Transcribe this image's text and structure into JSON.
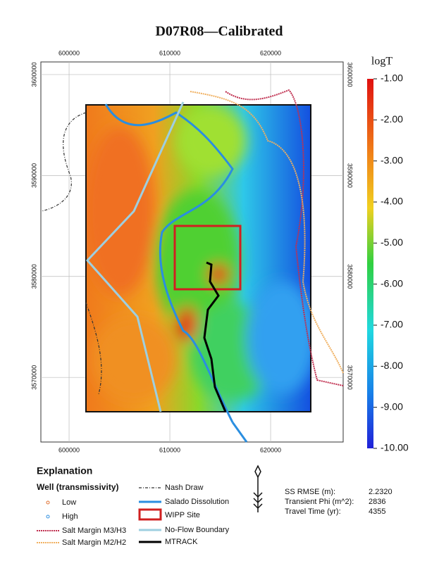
{
  "title": "D07R08—Calibrated",
  "map": {
    "xlim": [
      597200,
      627200
    ],
    "ylim": [
      3563600,
      3601250
    ],
    "xticks": [
      600000,
      610000,
      620000
    ],
    "yticks": [
      3600000,
      3590000,
      3580000,
      3570000
    ]
  },
  "colorbar": {
    "title": "logT",
    "lim": [
      -1,
      -10
    ],
    "ticks": [
      {
        "value": -1,
        "label": "-1.00"
      },
      {
        "value": -2,
        "label": "-2.00"
      },
      {
        "value": -3,
        "label": "-3.00"
      },
      {
        "value": -4,
        "label": "-4.00"
      },
      {
        "value": -5,
        "label": "-5.00"
      },
      {
        "value": -6,
        "label": "-6.00"
      },
      {
        "value": -7,
        "label": "-7.00"
      },
      {
        "value": -8,
        "label": "-8.00"
      },
      {
        "value": -9,
        "label": "-9.00"
      },
      {
        "value": -10,
        "label": "-10.00"
      }
    ]
  },
  "legend": {
    "title": "Explanation",
    "wells_title": "Well (transmissivity)",
    "low": "Low",
    "high": "High",
    "salt_m3": "Salt Margin M3/H3",
    "salt_m2": "Salt Margin M2/H2",
    "nash": "Nash Draw",
    "salado": "Salado Dissolution",
    "wipp": "WIPP Site",
    "noflow": "No-Flow Boundary",
    "mtrack": "MTRACK"
  },
  "stats": [
    {
      "label": "SS RMSE (m):",
      "value": "2.2320"
    },
    {
      "label": "Transient Phi (m^2):",
      "value": "2836"
    },
    {
      "label": "Travel Time (yr):",
      "value": "4355"
    }
  ]
}
